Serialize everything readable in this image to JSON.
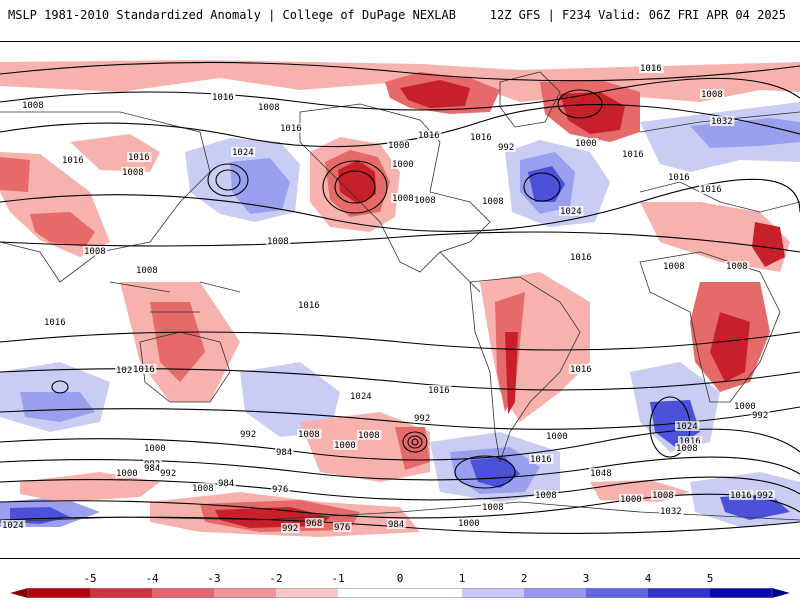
{
  "header": {
    "title_left": "MSLP 1981-2010 Standardized Anomaly | College of DuPage NEXLAB",
    "title_right": "12Z GFS | F234 Valid: 06Z FRI APR 04 2025"
  },
  "map": {
    "contour_labels": [
      "1008",
      "1000",
      "1008",
      "1008",
      "1016",
      "1016",
      "1016",
      "1024",
      "1008",
      "1000",
      "1016",
      "1016",
      "1008",
      "1008",
      "1000",
      "1008",
      "992",
      "1000",
      "1016",
      "1008",
      "1032",
      "1024",
      "1016",
      "1016",
      "1008",
      "1016",
      "1008",
      "1008",
      "1008",
      "1008",
      "1016",
      "1016",
      "1024",
      "1016",
      "1024",
      "1016",
      "1008",
      "992",
      "984",
      "1000",
      "992",
      "1008",
      "1000",
      "992",
      "984",
      "1000",
      "992",
      "1008",
      "984",
      "976",
      "968",
      "976",
      "992",
      "984",
      "1000",
      "1008",
      "1016",
      "1008",
      "1000",
      "1024",
      "1016",
      "1008",
      "1000",
      "992",
      "1000",
      "1008",
      "1016",
      "992",
      "1024",
      "1032",
      "1048",
      "1016",
      "1016",
      "1016"
    ]
  },
  "colorbar": {
    "labels": [
      "-5",
      "-4",
      "-3",
      "-2",
      "-1",
      "0",
      "1",
      "2",
      "3",
      "4",
      "5"
    ],
    "colors": [
      "#b4000a",
      "#d2323c",
      "#e6646e",
      "#f0969b",
      "#fac8c8",
      "#ffffff",
      "#ffffff",
      "#c8c8fa",
      "#9696f0",
      "#6464e6",
      "#3232d2",
      "#0a0ab4"
    ],
    "negative_end_color": "#8b0000",
    "positive_end_color": "#00008b"
  },
  "colors": {
    "land_outline": "#333333",
    "isobar": "#000000",
    "neg_strong": "#c8202a",
    "neg_mid": "#e66a6a",
    "neg_weak": "#f7b2ad",
    "pos_weak": "#c9cdf4",
    "pos_mid": "#9aa0ee",
    "pos_strong": "#4b51d8"
  }
}
